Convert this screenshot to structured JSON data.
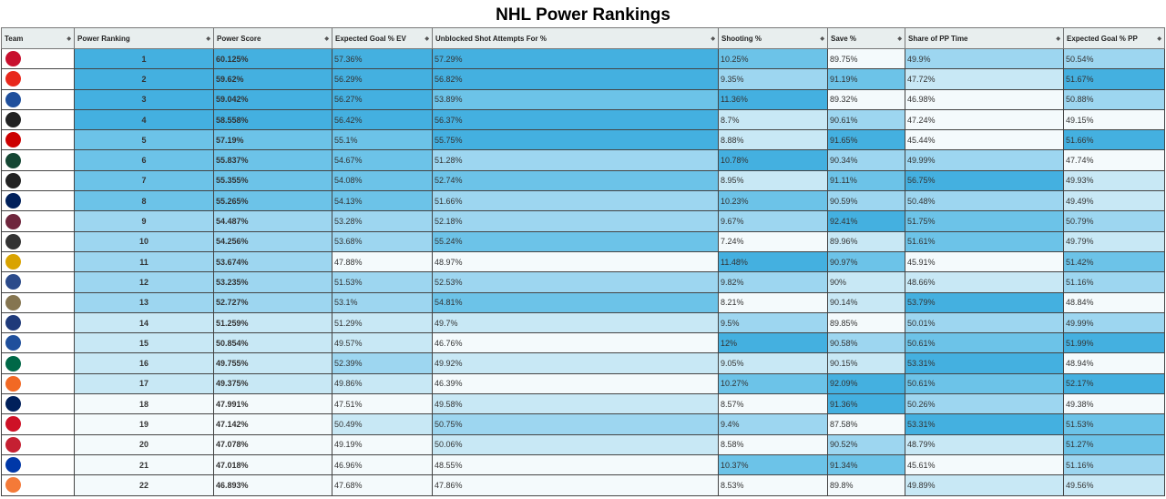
{
  "title": "NHL Power Rankings",
  "palette": [
    "#f4fafc",
    "#c8e8f5",
    "#9dd6f0",
    "#6cc3e8",
    "#44b0e0"
  ],
  "columns": [
    "Team",
    "Power Ranking",
    "Power Score",
    "Expected Goal % EV",
    "Unblocked Shot Attempts For %",
    "Shooting %",
    "Save %",
    "Share of PP Time",
    "Expected Goal % PP"
  ],
  "rows": [
    {
      "logo": "florida-panthers-logo",
      "color": "#c8102e",
      "rank": "1",
      "score": "60.125%",
      "xg_ev": "57.36%",
      "usaf": "57.29%",
      "sh": "10.25%",
      "sv": "89.75%",
      "pp": "49.9%",
      "xg_pp": "50.54%"
    },
    {
      "logo": "calgary-flames-logo",
      "color": "#e8281c",
      "rank": "2",
      "score": "59.62%",
      "xg_ev": "56.29%",
      "usaf": "56.82%",
      "sh": "9.35%",
      "sv": "91.19%",
      "pp": "47.72%",
      "xg_pp": "51.67%"
    },
    {
      "logo": "toronto-maple-leafs-logo",
      "color": "#1f4f9c",
      "rank": "3",
      "score": "59.042%",
      "xg_ev": "56.27%",
      "usaf": "53.89%",
      "sh": "11.36%",
      "sv": "89.32%",
      "pp": "46.98%",
      "xg_pp": "50.88%"
    },
    {
      "logo": "boston-bruins-logo",
      "color": "#222",
      "rank": "4",
      "score": "58.558%",
      "xg_ev": "56.42%",
      "usaf": "56.37%",
      "sh": "8.7%",
      "sv": "90.61%",
      "pp": "47.24%",
      "xg_pp": "49.15%"
    },
    {
      "logo": "carolina-hurricanes-logo",
      "color": "#cc0000",
      "rank": "5",
      "score": "57.19%",
      "xg_ev": "55.1%",
      "usaf": "55.75%",
      "sh": "8.88%",
      "sv": "91.65%",
      "pp": "45.44%",
      "xg_pp": "51.66%"
    },
    {
      "logo": "minnesota-wild-logo",
      "color": "#154734",
      "rank": "6",
      "score": "55.837%",
      "xg_ev": "54.67%",
      "usaf": "51.28%",
      "sh": "10.78%",
      "sv": "90.34%",
      "pp": "49.99%",
      "xg_pp": "47.74%"
    },
    {
      "logo": "pittsburgh-penguins-logo",
      "color": "#222",
      "rank": "7",
      "score": "55.355%",
      "xg_ev": "54.08%",
      "usaf": "52.74%",
      "sh": "8.95%",
      "sv": "91.11%",
      "pp": "56.75%",
      "xg_pp": "49.93%"
    },
    {
      "logo": "tampa-bay-lightning-logo",
      "color": "#00205b",
      "rank": "8",
      "score": "55.265%",
      "xg_ev": "54.13%",
      "usaf": "51.66%",
      "sh": "10.23%",
      "sv": "90.59%",
      "pp": "50.48%",
      "xg_pp": "49.49%"
    },
    {
      "logo": "colorado-avalanche-logo",
      "color": "#6f263d",
      "rank": "9",
      "score": "54.487%",
      "xg_ev": "53.28%",
      "usaf": "52.18%",
      "sh": "9.67%",
      "sv": "92.41%",
      "pp": "51.75%",
      "xg_pp": "50.79%"
    },
    {
      "logo": "los-angeles-kings-logo",
      "color": "#333",
      "rank": "10",
      "score": "54.256%",
      "xg_ev": "53.68%",
      "usaf": "55.24%",
      "sh": "7.24%",
      "sv": "89.96%",
      "pp": "51.61%",
      "xg_pp": "49.79%"
    },
    {
      "logo": "nashville-predators-logo",
      "color": "#d9a300",
      "rank": "11",
      "score": "53.674%",
      "xg_ev": "47.88%",
      "usaf": "48.97%",
      "sh": "11.48%",
      "sv": "90.97%",
      "pp": "45.91%",
      "xg_pp": "51.42%"
    },
    {
      "logo": "edmonton-oilers-logo",
      "color": "#2b4a8a",
      "rank": "12",
      "score": "53.235%",
      "xg_ev": "51.53%",
      "usaf": "52.53%",
      "sh": "9.82%",
      "sv": "90%",
      "pp": "48.66%",
      "xg_pp": "51.16%"
    },
    {
      "logo": "vegas-golden-knights-logo",
      "color": "#857550",
      "rank": "13",
      "score": "52.727%",
      "xg_ev": "53.1%",
      "usaf": "54.81%",
      "sh": "8.21%",
      "sv": "90.14%",
      "pp": "53.79%",
      "xg_pp": "48.84%"
    },
    {
      "logo": "washington-capitals-logo",
      "color": "#1f3a7a",
      "rank": "14",
      "score": "51.259%",
      "xg_ev": "51.29%",
      "usaf": "49.7%",
      "sh": "9.5%",
      "sv": "89.85%",
      "pp": "50.01%",
      "xg_pp": "49.99%"
    },
    {
      "logo": "st-louis-blues-logo",
      "color": "#1f4f9c",
      "rank": "15",
      "score": "50.854%",
      "xg_ev": "49.57%",
      "usaf": "46.76%",
      "sh": "12%",
      "sv": "90.58%",
      "pp": "50.61%",
      "xg_pp": "51.99%"
    },
    {
      "logo": "dallas-stars-logo",
      "color": "#006847",
      "rank": "16",
      "score": "49.755%",
      "xg_ev": "52.39%",
      "usaf": "49.92%",
      "sh": "9.05%",
      "sv": "90.15%",
      "pp": "53.31%",
      "xg_pp": "48.94%"
    },
    {
      "logo": "new-york-islanders-logo",
      "color": "#f26924",
      "rank": "17",
      "score": "49.375%",
      "xg_ev": "49.86%",
      "usaf": "46.39%",
      "sh": "10.27%",
      "sv": "92.09%",
      "pp": "50.61%",
      "xg_pp": "52.17%"
    },
    {
      "logo": "vancouver-canucks-logo",
      "color": "#00205b",
      "rank": "18",
      "score": "47.991%",
      "xg_ev": "47.51%",
      "usaf": "49.58%",
      "sh": "8.57%",
      "sv": "91.36%",
      "pp": "50.26%",
      "xg_pp": "49.38%"
    },
    {
      "logo": "new-jersey-devils-logo",
      "color": "#ce1126",
      "rank": "19",
      "score": "47.142%",
      "xg_ev": "50.49%",
      "usaf": "50.75%",
      "sh": "9.4%",
      "sv": "87.58%",
      "pp": "53.31%",
      "xg_pp": "51.53%"
    },
    {
      "logo": "ottawa-senators-logo",
      "color": "#c52032",
      "rank": "20",
      "score": "47.078%",
      "xg_ev": "49.19%",
      "usaf": "50.06%",
      "sh": "8.58%",
      "sv": "90.52%",
      "pp": "48.79%",
      "xg_pp": "51.27%"
    },
    {
      "logo": "new-york-rangers-logo",
      "color": "#0038a8",
      "rank": "21",
      "score": "47.018%",
      "xg_ev": "46.96%",
      "usaf": "48.55%",
      "sh": "10.37%",
      "sv": "91.34%",
      "pp": "45.61%",
      "xg_pp": "51.16%"
    },
    {
      "logo": "anaheim-ducks-logo",
      "color": "#f47a38",
      "rank": "22",
      "score": "46.893%",
      "xg_ev": "47.68%",
      "usaf": "47.86%",
      "sh": "8.53%",
      "sv": "89.8%",
      "pp": "49.89%",
      "xg_pp": "49.56%"
    }
  ]
}
